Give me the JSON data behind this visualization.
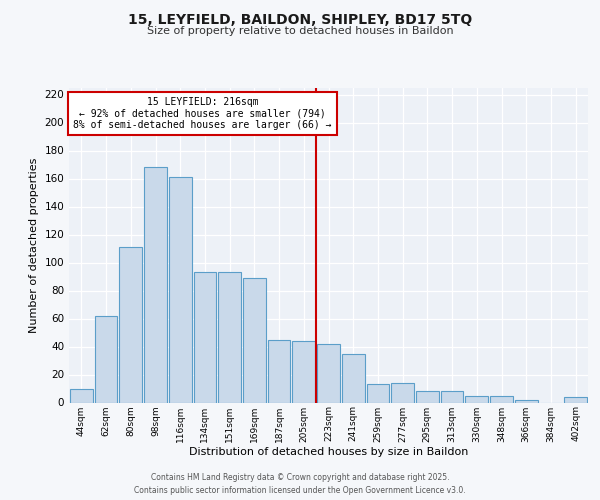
{
  "title1": "15, LEYFIELD, BAILDON, SHIPLEY, BD17 5TQ",
  "title2": "Size of property relative to detached houses in Baildon",
  "xlabel": "Distribution of detached houses by size in Baildon",
  "ylabel": "Number of detached properties",
  "bin_labels": [
    "44sqm",
    "62sqm",
    "80sqm",
    "98sqm",
    "116sqm",
    "134sqm",
    "151sqm",
    "169sqm",
    "187sqm",
    "205sqm",
    "223sqm",
    "241sqm",
    "259sqm",
    "277sqm",
    "295sqm",
    "313sqm",
    "330sqm",
    "348sqm",
    "366sqm",
    "384sqm",
    "402sqm"
  ],
  "bar_values": [
    10,
    62,
    111,
    168,
    161,
    93,
    93,
    89,
    45,
    44,
    42,
    35,
    13,
    14,
    8,
    8,
    5,
    5,
    2,
    0,
    4
  ],
  "bar_color": "#c9d9ea",
  "bar_edge_color": "#5b9ec9",
  "vline_color": "#cc0000",
  "annotation_title": "15 LEYFIELD: 216sqm",
  "annotation_line1": "← 92% of detached houses are smaller (794)",
  "annotation_line2": "8% of semi-detached houses are larger (66) →",
  "annotation_box_color": "#cc0000",
  "ylim": [
    0,
    225
  ],
  "yticks": [
    0,
    20,
    40,
    60,
    80,
    100,
    120,
    140,
    160,
    180,
    200,
    220
  ],
  "footer": "Contains HM Land Registry data © Crown copyright and database right 2025.\nContains public sector information licensed under the Open Government Licence v3.0.",
  "fig_bg_color": "#f5f7fa",
  "plot_bg_color": "#edf1f7"
}
